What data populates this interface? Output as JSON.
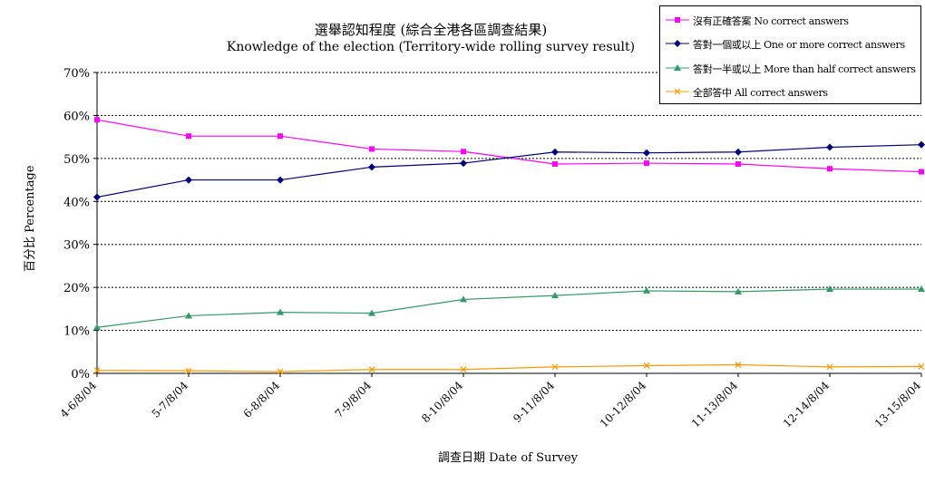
{
  "chart_data": {
    "type": "line",
    "title": "選舉認知程度 (綜合全港各區調查結果)",
    "subtitle": "Knowledge of the election (Territory-wide rolling survey result)",
    "xlabel": "調查日期 Date of Survey",
    "ylabel": "百分比 Percentage",
    "ylim": [
      0,
      70
    ],
    "yticks": [
      "0%",
      "10%",
      "20%",
      "30%",
      "40%",
      "50%",
      "60%",
      "70%"
    ],
    "grid": true,
    "legend_position": "top-right",
    "categories": [
      "4-6/8/04",
      "5-7/8/04",
      "6-8/8/04",
      "7-9/8/04",
      "8-10/8/04",
      "9-11/8/04",
      "10-12/8/04",
      "11-13/8/04",
      "12-14/8/04",
      "13-15/8/04"
    ],
    "series": [
      {
        "name": "沒有正確答案 No correct answers",
        "color": "#ff00ff",
        "marker": "square",
        "values": [
          59.0,
          55.2,
          55.2,
          52.2,
          51.6,
          48.7,
          48.9,
          48.7,
          47.6,
          46.9
        ]
      },
      {
        "name": "答對一個或以上 One or more correct answers",
        "color": "#000080",
        "marker": "diamond",
        "values": [
          41.0,
          45.0,
          45.0,
          48.0,
          48.9,
          51.5,
          51.3,
          51.5,
          52.6,
          53.2
        ]
      },
      {
        "name": "答對一半或以上 More than half correct answers",
        "color": "#339966",
        "marker": "triangle",
        "values": [
          10.7,
          13.4,
          14.2,
          14.0,
          17.2,
          18.1,
          19.2,
          19.0,
          19.6,
          19.6
        ]
      },
      {
        "name": "全部答中 All correct answers",
        "color": "#ff9900",
        "marker": "x",
        "values": [
          0.7,
          0.6,
          0.4,
          0.9,
          0.9,
          1.5,
          1.8,
          2.0,
          1.5,
          1.6
        ]
      }
    ]
  }
}
